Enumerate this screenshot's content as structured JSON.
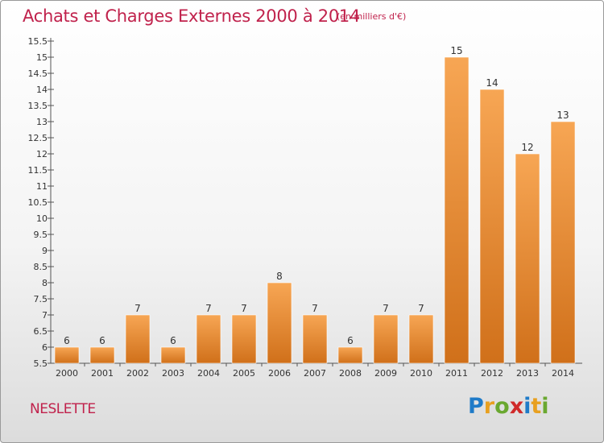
{
  "header": {
    "title": "Achats et Charges Externes 2000 à 2014",
    "subtitle": "(en milliers d'€)"
  },
  "footer": {
    "commune": "NESLETTE",
    "logo": {
      "letters": [
        "P",
        "r",
        "o",
        "x",
        "i",
        "t",
        "i"
      ],
      "colors": [
        "#1f7bc8",
        "#e8a020",
        "#6aa830",
        "#d02a2a",
        "#1f7bc8",
        "#e8a020",
        "#6aa830"
      ]
    }
  },
  "chart_data": {
    "type": "bar",
    "categories": [
      "2000",
      "2001",
      "2002",
      "2003",
      "2004",
      "2005",
      "2006",
      "2007",
      "2008",
      "2009",
      "2010",
      "2011",
      "2012",
      "2013",
      "2014"
    ],
    "values": [
      6,
      6,
      7,
      6,
      7,
      7,
      8,
      7,
      6,
      7,
      7,
      15,
      14,
      12,
      13
    ],
    "data_labels": [
      "6",
      "6",
      "7",
      "6",
      "7",
      "7",
      "8",
      "7",
      "6",
      "7",
      "7",
      "15",
      "14",
      "12",
      "13"
    ],
    "y_ticks": [
      "5.5",
      "6",
      "6.5",
      "7",
      "7.5",
      "8",
      "8.5",
      "9",
      "9.5",
      "10",
      "10.5",
      "11",
      "11.5",
      "12",
      "12.5",
      "13",
      "13.5",
      "14",
      "14.5",
      "15",
      "15.5"
    ],
    "ylim": [
      5.5,
      15.5
    ],
    "grid": false,
    "bar_color": "#f0922c"
  }
}
